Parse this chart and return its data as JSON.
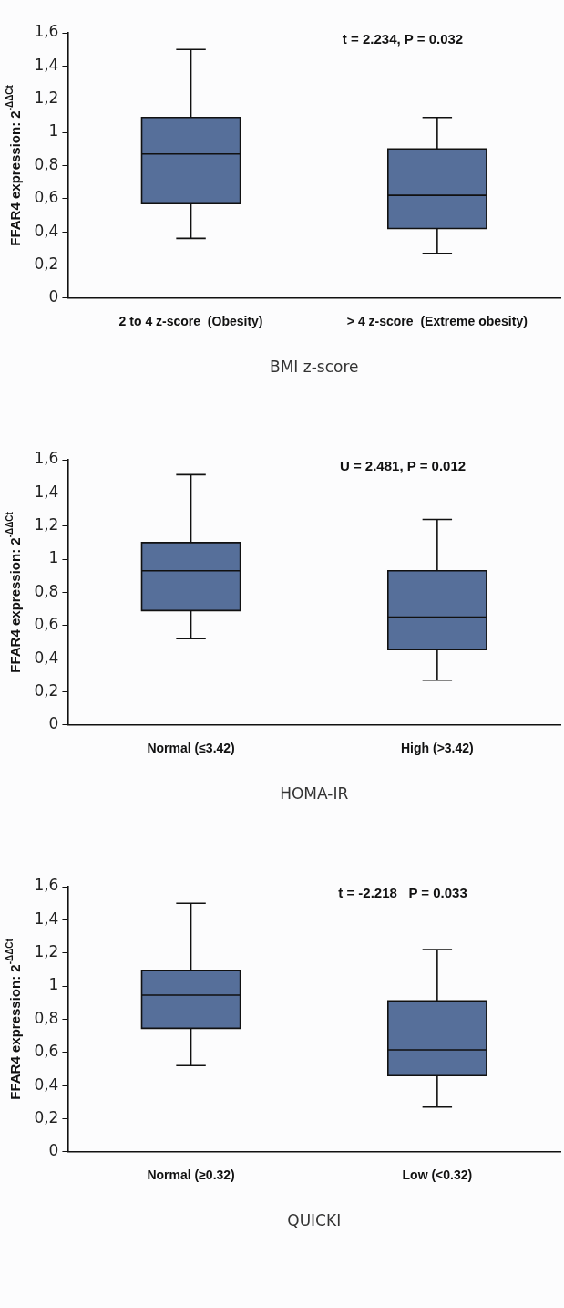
{
  "chart_data": [
    {
      "type": "box",
      "categories": [
        "2 to 4 z-score  (Obesity)",
        "> 4 z-score  (Extreme obesity)"
      ],
      "color": "#566f9a",
      "ylabel": "FFAR4 expression: 2$^{-ΔΔCt}$",
      "xlabel": "BMI z-score",
      "annotations": [
        "t = 2.234, P = 0.032"
      ],
      "ylim": [
        0,
        1.6
      ],
      "yticks": [
        {
          "value": 0,
          "label": "0"
        },
        {
          "value": 0.2,
          "label": "0,2"
        },
        {
          "value": 0.4,
          "label": "0,4"
        },
        {
          "value": 0.6,
          "label": "0,6"
        },
        {
          "value": 0.8,
          "label": "0,8"
        },
        {
          "value": 1,
          "label": "1"
        },
        {
          "value": 1.2,
          "label": "1,2"
        },
        {
          "value": 1.4,
          "label": "1,4"
        },
        {
          "value": 1.6,
          "label": "1,6"
        }
      ],
      "boxes": [
        {
          "low": 0.36,
          "q1": 0.57,
          "median": 0.87,
          "q3": 1.09,
          "high": 1.5
        },
        {
          "low": 0.27,
          "q1": 0.42,
          "median": 0.62,
          "q3": 0.9,
          "high": 1.09
        }
      ]
    },
    {
      "type": "box",
      "categories": [
        "Normal (≤3.42)",
        "High (>3.42)"
      ],
      "color": "#566f9a",
      "ylabel": "FFAR4 expression: 2$^{-ΔΔCt}$",
      "xlabel": "HOMA-IR",
      "annotations": [
        "U = 2.481, P = 0.012"
      ],
      "ylim": [
        0,
        1.6
      ],
      "yticks": [
        {
          "value": 0,
          "label": "0"
        },
        {
          "value": 0.2,
          "label": "0,2"
        },
        {
          "value": 0.4,
          "label": "0,4"
        },
        {
          "value": 0.6,
          "label": "0,6"
        },
        {
          "value": 0.8,
          "label": "0,8"
        },
        {
          "value": 1,
          "label": "1"
        },
        {
          "value": 1.2,
          "label": "1,2"
        },
        {
          "value": 1.4,
          "label": "1,4"
        },
        {
          "value": 1.6,
          "label": "1,6"
        }
      ],
      "boxes": [
        {
          "low": 0.52,
          "q1": 0.69,
          "median": 0.93,
          "q3": 1.1,
          "high": 1.51
        },
        {
          "low": 0.27,
          "q1": 0.455,
          "median": 0.65,
          "q3": 0.93,
          "high": 1.24
        }
      ]
    },
    {
      "type": "box",
      "categories": [
        "Normal (≥0.32)",
        "Low (<0.32)"
      ],
      "color": "#566f9a",
      "ylabel": "FFAR4 expression: 2$^{-ΔΔCt}$",
      "xlabel": "QUICKI",
      "annotations": [
        "t = -2.218   P = 0.033"
      ],
      "ylim": [
        0,
        1.6
      ],
      "yticks": [
        {
          "value": 0,
          "label": "0"
        },
        {
          "value": 0.2,
          "label": "0,2"
        },
        {
          "value": 0.4,
          "label": "0,4"
        },
        {
          "value": 0.6,
          "label": "0,6"
        },
        {
          "value": 0.8,
          "label": "0,8"
        },
        {
          "value": 1,
          "label": "1"
        },
        {
          "value": 1.2,
          "label": "1,2"
        },
        {
          "value": 1.4,
          "label": "1,4"
        },
        {
          "value": 1.6,
          "label": "1,6"
        }
      ],
      "boxes": [
        {
          "low": 0.52,
          "q1": 0.745,
          "median": 0.945,
          "q3": 1.095,
          "high": 1.5
        },
        {
          "low": 0.27,
          "q1": 0.46,
          "median": 0.615,
          "q3": 0.91,
          "high": 1.22
        }
      ]
    }
  ]
}
